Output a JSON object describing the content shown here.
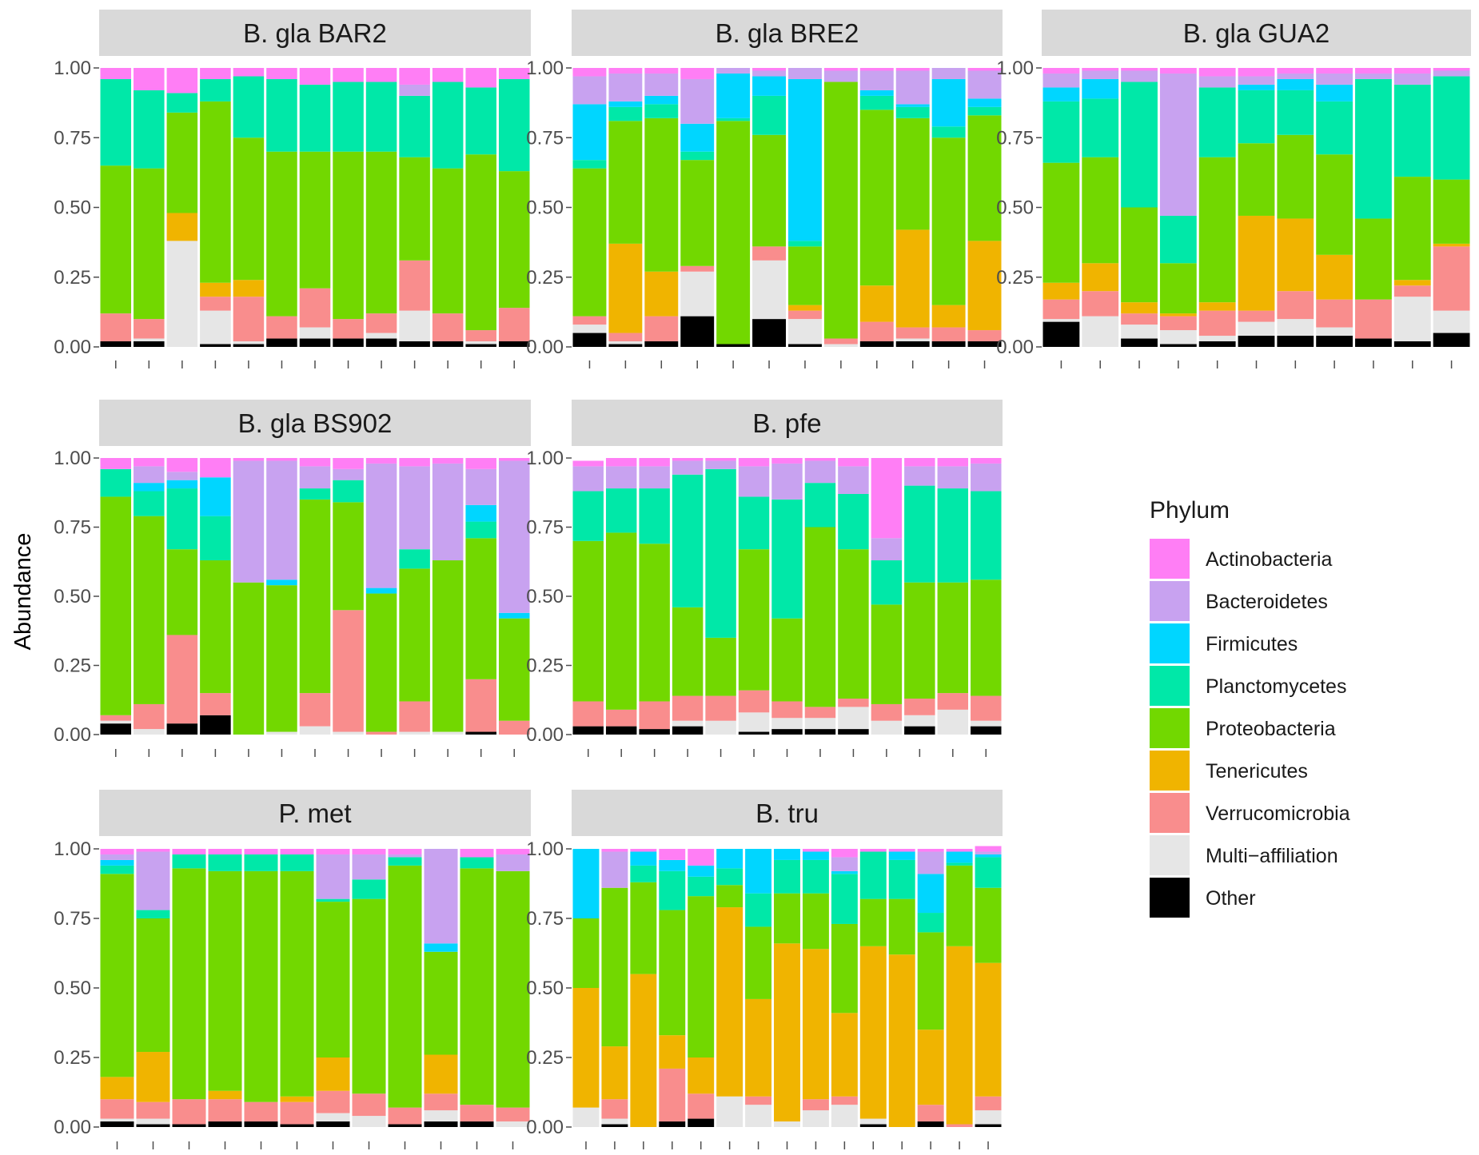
{
  "chart_data": {
    "type": "bar",
    "subtype": "stacked-100-percent-faceted",
    "ylabel": "Abundance",
    "ylim": [
      0,
      1
    ],
    "yticks": [
      "0.00",
      "0.25",
      "0.50",
      "0.75",
      "1.00"
    ],
    "legend": {
      "title": "Phylum",
      "position": "right",
      "entries": [
        {
          "name": "Actinobacteria",
          "color": "#ff7ef5"
        },
        {
          "name": "Bacteroidetes",
          "color": "#c8a2f0"
        },
        {
          "name": "Firmicutes",
          "color": "#00d6ff"
        },
        {
          "name": "Planctomycetes",
          "color": "#00e8a8"
        },
        {
          "name": "Proteobacteria",
          "color": "#72d800"
        },
        {
          "name": "Tenericutes",
          "color": "#f0b400"
        },
        {
          "name": "Verrucomicrobia",
          "color": "#f98d8d"
        },
        {
          "name": "Multi−affiliation",
          "color": "#e6e6e6"
        },
        {
          "name": "Other",
          "color": "#000000"
        }
      ]
    },
    "stack_order_bottom_to_top": [
      "Other",
      "Multi−affiliation",
      "Verrucomicrobia",
      "Tenericutes",
      "Proteobacteria",
      "Planctomycetes",
      "Firmicutes",
      "Bacteroidetes",
      "Actinobacteria"
    ],
    "panels": [
      {
        "title": "B. gla BAR2",
        "bars": [
          [
            0.02,
            0,
            0.1,
            0,
            0.53,
            0.31,
            0,
            0,
            0.04
          ],
          [
            0.02,
            0.01,
            0.07,
            0,
            0.54,
            0.28,
            0,
            0,
            0.08
          ],
          [
            0,
            0.38,
            0,
            0.1,
            0.36,
            0.07,
            0,
            0,
            0.09
          ],
          [
            0.01,
            0.12,
            0.05,
            0.05,
            0.65,
            0.08,
            0,
            0,
            0.04
          ],
          [
            0.01,
            0.01,
            0.16,
            0.06,
            0.51,
            0.22,
            0,
            0,
            0.03
          ],
          [
            0.03,
            0,
            0.08,
            0,
            0.59,
            0.26,
            0,
            0,
            0.04
          ],
          [
            0.03,
            0.04,
            0.14,
            0,
            0.49,
            0.24,
            0,
            0,
            0.06
          ],
          [
            0.03,
            0,
            0.07,
            0,
            0.6,
            0.25,
            0,
            0,
            0.05
          ],
          [
            0.03,
            0.02,
            0.07,
            0,
            0.58,
            0.25,
            0,
            0,
            0.05
          ],
          [
            0.02,
            0.11,
            0.18,
            0,
            0.37,
            0.22,
            0,
            0.04,
            0.06
          ],
          [
            0.02,
            0,
            0.1,
            0,
            0.52,
            0.31,
            0,
            0,
            0.05
          ],
          [
            0.01,
            0.01,
            0.04,
            0,
            0.63,
            0.24,
            0,
            0,
            0.07
          ],
          [
            0.02,
            0,
            0.12,
            0,
            0.49,
            0.33,
            0,
            0,
            0.04
          ]
        ]
      },
      {
        "title": "B. gla BRE2",
        "bars": [
          [
            0.05,
            0.03,
            0.03,
            0,
            0.53,
            0.03,
            0.2,
            0.1,
            0.03
          ],
          [
            0.01,
            0.01,
            0.03,
            0.32,
            0.44,
            0.05,
            0.02,
            0.1,
            0.02
          ],
          [
            0.02,
            0,
            0.09,
            0.16,
            0.55,
            0.05,
            0.03,
            0.08,
            0.02
          ],
          [
            0.11,
            0.16,
            0.02,
            0,
            0.38,
            0.03,
            0.1,
            0.16,
            0.04
          ],
          [
            0.01,
            0,
            0,
            0,
            0.8,
            0.01,
            0.16,
            0.02,
            0
          ],
          [
            0.1,
            0.21,
            0.05,
            0,
            0.4,
            0.14,
            0.07,
            0.02,
            0.01
          ],
          [
            0.01,
            0.09,
            0.03,
            0.02,
            0.21,
            0.02,
            0.58,
            0.04,
            0
          ],
          [
            0,
            0.01,
            0.02,
            0,
            0.92,
            0,
            0,
            0.04,
            0.01
          ],
          [
            0.02,
            0,
            0.07,
            0.13,
            0.63,
            0.05,
            0.02,
            0.07,
            0.01
          ],
          [
            0.02,
            0.01,
            0.04,
            0.35,
            0.4,
            0.04,
            0.01,
            0.12,
            0.01
          ],
          [
            0.02,
            0,
            0.05,
            0.08,
            0.6,
            0.04,
            0.17,
            0.04,
            0
          ],
          [
            0.02,
            0,
            0.04,
            0.32,
            0.45,
            0.03,
            0.03,
            0.1,
            0.01
          ]
        ]
      },
      {
        "title": "B. gla GUA2",
        "bars": [
          [
            0.09,
            0.01,
            0.07,
            0.06,
            0.43,
            0.22,
            0.05,
            0.05,
            0.02
          ],
          [
            0,
            0.11,
            0.09,
            0.1,
            0.38,
            0.21,
            0.07,
            0.03,
            0.01
          ],
          [
            0.03,
            0.05,
            0.04,
            0.04,
            0.34,
            0.45,
            0,
            0.04,
            0.01
          ],
          [
            0.01,
            0.05,
            0.05,
            0.01,
            0.18,
            0.17,
            0,
            0.51,
            0.02
          ],
          [
            0.02,
            0.02,
            0.09,
            0.03,
            0.52,
            0.25,
            0,
            0.04,
            0.03
          ],
          [
            0.04,
            0.05,
            0.04,
            0.34,
            0.26,
            0.19,
            0.02,
            0.03,
            0.03
          ],
          [
            0.04,
            0.06,
            0.1,
            0.26,
            0.3,
            0.16,
            0.04,
            0.02,
            0.02
          ],
          [
            0.04,
            0.03,
            0.1,
            0.16,
            0.36,
            0.19,
            0.06,
            0.04,
            0.02
          ],
          [
            0.03,
            0,
            0.14,
            0,
            0.29,
            0.5,
            0,
            0.02,
            0.02
          ],
          [
            0.02,
            0.16,
            0.04,
            0.02,
            0.37,
            0.33,
            0,
            0.04,
            0.02
          ],
          [
            0.05,
            0.08,
            0.23,
            0.01,
            0.23,
            0.37,
            0,
            0.02,
            0.01
          ]
        ]
      },
      {
        "title": "B. gla BS902",
        "bars": [
          [
            0.04,
            0.01,
            0.02,
            0,
            0.79,
            0.1,
            0,
            0,
            0.04
          ],
          [
            0,
            0.02,
            0.09,
            0,
            0.68,
            0.09,
            0.03,
            0.06,
            0.03
          ],
          [
            0.04,
            0,
            0.32,
            0,
            0.31,
            0.22,
            0.03,
            0.03,
            0.05
          ],
          [
            0.07,
            0,
            0.08,
            0,
            0.48,
            0.16,
            0.14,
            0,
            0.07
          ],
          [
            0,
            0,
            0,
            0,
            0.55,
            0,
            0,
            0.44,
            0.01
          ],
          [
            0,
            0.01,
            0,
            0,
            0.53,
            0,
            0.02,
            0.43,
            0.01
          ],
          [
            0,
            0.03,
            0.12,
            0,
            0.7,
            0.04,
            0,
            0.08,
            0.03
          ],
          [
            0,
            0.01,
            0.44,
            0,
            0.39,
            0.08,
            0,
            0.04,
            0.04
          ],
          [
            0,
            0,
            0.01,
            0,
            0.5,
            0,
            0.02,
            0.45,
            0.02
          ],
          [
            0,
            0.01,
            0.11,
            0,
            0.48,
            0.07,
            0,
            0.3,
            0.03
          ],
          [
            0,
            0.01,
            0,
            0,
            0.62,
            0,
            0,
            0.35,
            0.02
          ],
          [
            0.01,
            0,
            0.19,
            0,
            0.51,
            0.06,
            0.06,
            0.13,
            0.04
          ],
          [
            0,
            0,
            0.05,
            0,
            0.37,
            0,
            0.02,
            0.55,
            0.01
          ]
        ]
      },
      {
        "title": "B. pfe",
        "bars": [
          [
            0.03,
            0,
            0.09,
            0,
            0.58,
            0.18,
            0,
            0.09,
            0.02
          ],
          [
            0.03,
            0,
            0.06,
            0,
            0.64,
            0.16,
            0,
            0.08,
            0.03
          ],
          [
            0.02,
            0,
            0.1,
            0,
            0.57,
            0.2,
            0,
            0.08,
            0.03
          ],
          [
            0.03,
            0.02,
            0.09,
            0,
            0.32,
            0.48,
            0,
            0.05,
            0.01
          ],
          [
            0,
            0.05,
            0.09,
            0,
            0.21,
            0.61,
            0,
            0.03,
            0.01
          ],
          [
            0.01,
            0.07,
            0.08,
            0,
            0.51,
            0.19,
            0,
            0.11,
            0.03
          ],
          [
            0.02,
            0.04,
            0.06,
            0,
            0.3,
            0.43,
            0,
            0.13,
            0.02
          ],
          [
            0.02,
            0.04,
            0.04,
            0,
            0.65,
            0.16,
            0,
            0.08,
            0.01
          ],
          [
            0.02,
            0.08,
            0.03,
            0,
            0.54,
            0.2,
            0,
            0.1,
            0.03
          ],
          [
            0,
            0.05,
            0.06,
            0,
            0.36,
            0.16,
            0,
            0.08,
            0.29
          ],
          [
            0.03,
            0.04,
            0.06,
            0,
            0.42,
            0.35,
            0,
            0.07,
            0.03
          ],
          [
            0,
            0.09,
            0.06,
            0,
            0.4,
            0.34,
            0,
            0.08,
            0.03
          ],
          [
            0.03,
            0.02,
            0.09,
            0,
            0.42,
            0.32,
            0,
            0.1,
            0.02
          ]
        ]
      },
      {
        "title": "P. met",
        "bars": [
          [
            0.02,
            0.01,
            0.07,
            0.08,
            0.73,
            0.03,
            0.02,
            0.02,
            0.02
          ],
          [
            0.01,
            0.02,
            0.06,
            0.18,
            0.48,
            0.03,
            0,
            0.21,
            0.01
          ],
          [
            0.01,
            0,
            0.09,
            0,
            0.83,
            0.05,
            0,
            0,
            0.02
          ],
          [
            0.02,
            0,
            0.08,
            0.03,
            0.79,
            0.06,
            0,
            0,
            0.02
          ],
          [
            0.02,
            0,
            0.07,
            0,
            0.83,
            0.06,
            0,
            0,
            0.02
          ],
          [
            0.01,
            0,
            0.08,
            0.02,
            0.81,
            0.06,
            0,
            0,
            0.02
          ],
          [
            0.02,
            0.03,
            0.08,
            0.12,
            0.56,
            0.01,
            0,
            0.16,
            0.02
          ],
          [
            0,
            0.04,
            0.08,
            0,
            0.7,
            0.07,
            0,
            0.09,
            0.02
          ],
          [
            0.01,
            0,
            0.06,
            0,
            0.87,
            0.03,
            0,
            0.01,
            0.02
          ],
          [
            0.02,
            0.04,
            0.06,
            0.14,
            0.37,
            0,
            0.03,
            0.34,
            0
          ],
          [
            0.02,
            0,
            0.06,
            0,
            0.85,
            0.04,
            0,
            0,
            0.03
          ],
          [
            0,
            0.02,
            0.05,
            0,
            0.85,
            0,
            0,
            0.06,
            0.02
          ]
        ]
      },
      {
        "title": "B. tru",
        "bars": [
          [
            0,
            0.07,
            0,
            0.43,
            0.25,
            0,
            0.25,
            0,
            0
          ],
          [
            0.01,
            0.02,
            0.07,
            0.19,
            0.57,
            0,
            0,
            0.13,
            0.01
          ],
          [
            0,
            0,
            0,
            0.55,
            0.33,
            0.06,
            0.05,
            0,
            0.01
          ],
          [
            0.02,
            0,
            0.19,
            0.12,
            0.45,
            0.14,
            0.04,
            0,
            0.04
          ],
          [
            0.03,
            0,
            0.09,
            0.13,
            0.58,
            0.07,
            0.04,
            0,
            0.06
          ],
          [
            0,
            0.11,
            0,
            0.68,
            0.08,
            0.06,
            0.07,
            0,
            0
          ],
          [
            0,
            0.08,
            0.03,
            0.35,
            0.26,
            0.12,
            0.16,
            0,
            0
          ],
          [
            0,
            0.02,
            0,
            0.64,
            0.18,
            0.12,
            0.04,
            0,
            0
          ],
          [
            0,
            0.06,
            0.04,
            0.54,
            0.2,
            0.12,
            0.03,
            0,
            0.01
          ],
          [
            0,
            0.08,
            0.03,
            0.3,
            0.32,
            0.18,
            0.01,
            0.05,
            0.03
          ],
          [
            0.01,
            0.02,
            0,
            0.62,
            0.17,
            0.17,
            0,
            0,
            0.01
          ],
          [
            0,
            0,
            0,
            0.62,
            0.2,
            0.14,
            0.03,
            0,
            0.01
          ],
          [
            0.02,
            0,
            0.06,
            0.27,
            0.35,
            0.07,
            0.14,
            0.08,
            0.01
          ],
          [
            0,
            0,
            0.01,
            0.64,
            0.29,
            0.01,
            0.04,
            0,
            0.01
          ],
          [
            0.01,
            0.05,
            0.05,
            0.48,
            0.27,
            0.11,
            0.01,
            0.01,
            0.02
          ]
        ]
      }
    ]
  }
}
